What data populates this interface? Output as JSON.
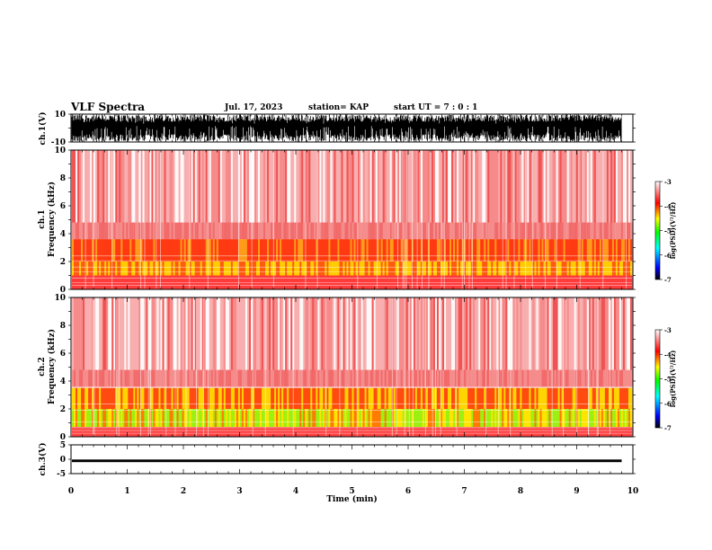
{
  "header": {
    "title": "VLF Spectra",
    "date": "Jul. 17, 2023",
    "station": "station= KAP",
    "start": "start UT =  7 : 0 : 1"
  },
  "chart_data": [
    {
      "type": "line",
      "ylabel": "ch.1(V)",
      "ylim": [
        -10,
        10
      ],
      "yticks": [
        "10",
        "-10"
      ],
      "signal": "dense waveform spanning roughly -10 to 10 V for entire record",
      "x_end_min": 9.8
    },
    {
      "type": "heatmap",
      "ylabel": "Frequency (kHz)",
      "channel_label": "ch.1",
      "ylim": [
        0,
        10
      ],
      "yticks": [
        "0",
        "2",
        "4",
        "6",
        "8",
        "10"
      ],
      "colorbar": {
        "label": "log(PSD)(V²/Hz)",
        "range": [
          -7,
          -3
        ],
        "ticks": [
          "-3",
          "-4",
          "-5",
          "-6",
          "-7"
        ],
        "colors": [
          "#000000",
          "#0000ff",
          "#00ffff",
          "#00ff00",
          "#ffff00",
          "#ff0000",
          "#ffffff"
        ]
      },
      "bands": [
        {
          "from": 2.0,
          "to": 3.6,
          "level": "orange-red"
        },
        {
          "from": 1.0,
          "to": 2.0,
          "level": "yellow-orange"
        },
        {
          "from": 0.0,
          "to": 1.0,
          "level": "red lines"
        },
        {
          "from": 3.6,
          "to": 10.0,
          "level": "light red"
        }
      ]
    },
    {
      "type": "heatmap",
      "ylabel": "Frequency (kHz)",
      "channel_label": "ch.2",
      "ylim": [
        0,
        10
      ],
      "yticks": [
        "0",
        "2",
        "4",
        "6",
        "8",
        "10"
      ],
      "colorbar": {
        "label": "log(PSD)(V²/Hz)",
        "range": [
          -7,
          -3
        ],
        "ticks": [
          "-3",
          "-4",
          "-5",
          "-6",
          "-7"
        ],
        "colors": [
          "#000000",
          "#0000ff",
          "#00ffff",
          "#00ff00",
          "#ffff00",
          "#ff0000",
          "#ffffff"
        ]
      },
      "bands": [
        {
          "from": 2.0,
          "to": 3.5,
          "level": "yellow-orange"
        },
        {
          "from": 0.7,
          "to": 2.0,
          "level": "yellow-green"
        },
        {
          "from": 0.0,
          "to": 0.7,
          "level": "red lines"
        },
        {
          "from": 3.5,
          "to": 10.0,
          "level": "light red"
        }
      ]
    },
    {
      "type": "line",
      "ylabel": "ch.3(V)",
      "ylim": [
        -5,
        5
      ],
      "yticks": [
        "5",
        "0",
        "-5"
      ],
      "signal": "thin band near -0.5 V",
      "x_end_min": 9.8
    }
  ],
  "xaxis": {
    "label": "Time (min)",
    "range": [
      0,
      10
    ],
    "ticks": [
      "0",
      "1",
      "2",
      "3",
      "4",
      "5",
      "6",
      "7",
      "8",
      "9",
      "10"
    ]
  }
}
